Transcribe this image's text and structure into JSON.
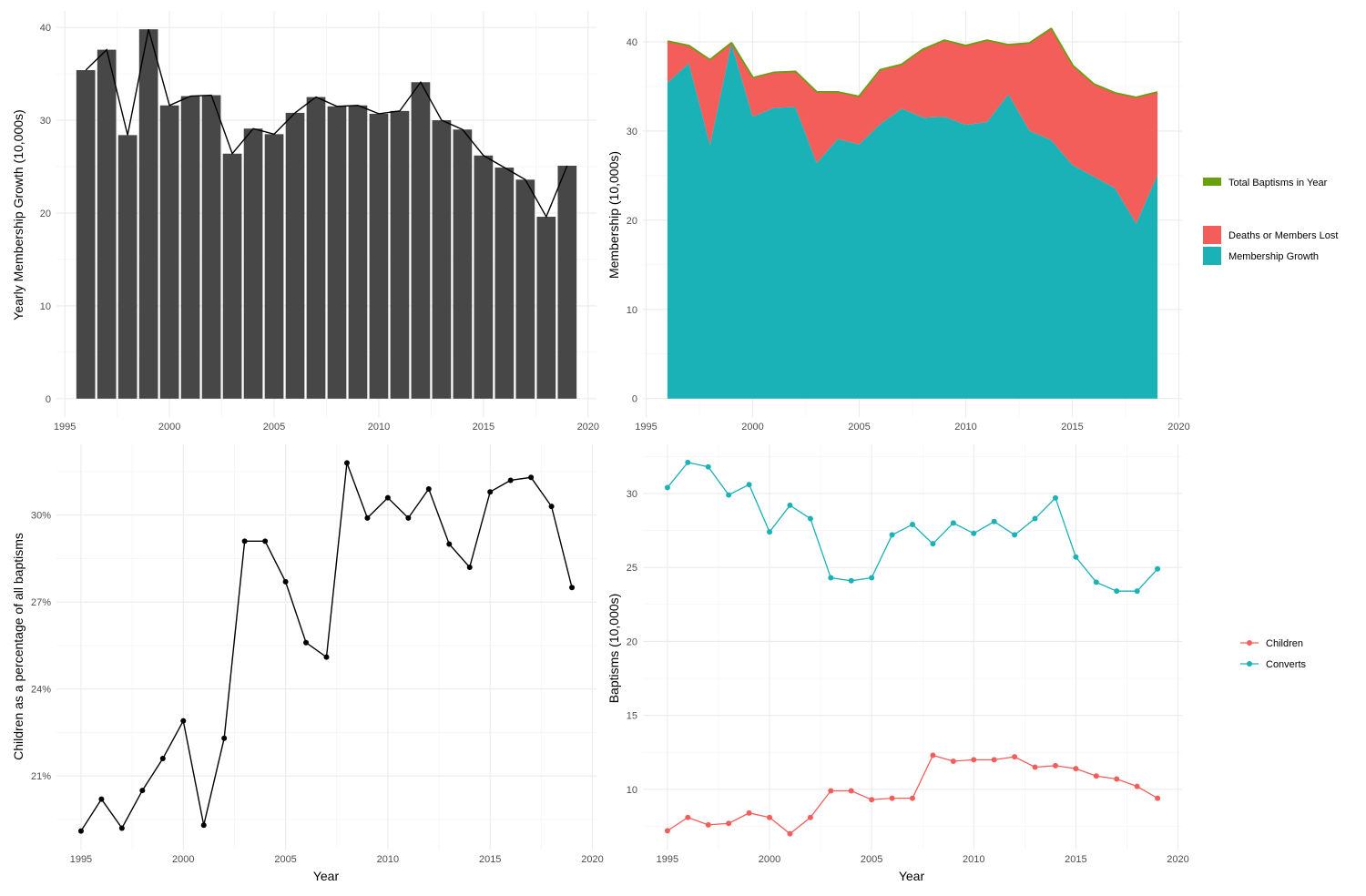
{
  "chart_data": [
    {
      "id": "yearly-growth",
      "type": "bar",
      "title": "",
      "xlabel": "",
      "ylabel": "Yearly Membership Growth (10,000s)",
      "x": [
        1996,
        1997,
        1998,
        1999,
        2000,
        2001,
        2002,
        2003,
        2004,
        2005,
        2006,
        2007,
        2008,
        2009,
        2010,
        2011,
        2012,
        2013,
        2014,
        2015,
        2016,
        2017,
        2018,
        2019
      ],
      "values": [
        35.4,
        37.6,
        28.4,
        39.8,
        31.6,
        32.6,
        32.7,
        26.4,
        29.1,
        28.5,
        30.8,
        32.5,
        31.5,
        31.6,
        30.7,
        31.0,
        34.1,
        30.0,
        29.0,
        26.2,
        24.9,
        23.6,
        19.6,
        25.1
      ],
      "overlay_line": true,
      "xlim": [
        1994.6,
        2020.4
      ],
      "ylim": [
        -1.98,
        41.78
      ],
      "x_ticks": [
        1995,
        2000,
        2005,
        2010,
        2015,
        2020
      ],
      "x_tick_labels": [
        "1995",
        "2000",
        "2005",
        "2010",
        "2015",
        "2020"
      ],
      "y_ticks": [
        0,
        10,
        20,
        30,
        40
      ],
      "y_tick_labels": [
        "0",
        "10",
        "20",
        "30",
        "40"
      ],
      "colors": {
        "bar": "#474747",
        "line": "#000000"
      },
      "grid": true
    },
    {
      "id": "membership-area",
      "type": "area",
      "title": "",
      "xlabel": "",
      "ylabel": "Membership (10,000s)",
      "x": [
        1996,
        1997,
        1998,
        1999,
        2000,
        2001,
        2002,
        2003,
        2004,
        2005,
        2006,
        2007,
        2008,
        2009,
        2010,
        2011,
        2012,
        2013,
        2014,
        2015,
        2016,
        2017,
        2018,
        2019
      ],
      "series": [
        {
          "name": "Membership Growth",
          "values": [
            35.4,
            37.6,
            28.4,
            39.8,
            31.6,
            32.6,
            32.7,
            26.4,
            29.1,
            28.5,
            30.8,
            32.5,
            31.5,
            31.6,
            30.7,
            31.0,
            34.1,
            30.0,
            29.0,
            26.2,
            24.9,
            23.6,
            19.6,
            25.1
          ],
          "color": "#1AB2B6"
        },
        {
          "name": "Deaths or Members Lost",
          "values": [
            4.6,
            1.9,
            9.5,
            0.0,
            4.3,
            3.9,
            3.9,
            7.9,
            5.2,
            5.3,
            6.0,
            4.9,
            7.6,
            8.5,
            8.8,
            9.1,
            5.5,
            9.8,
            12.4,
            11.1,
            10.3,
            10.6,
            14.1,
            9.2
          ],
          "color": "#F35E5A"
        },
        {
          "name": "Total Baptisms in Year",
          "values": [
            40.0,
            39.5,
            37.9,
            39.8,
            35.9,
            36.5,
            36.6,
            34.3,
            34.3,
            33.8,
            36.8,
            37.4,
            39.1,
            40.1,
            39.5,
            40.1,
            39.6,
            39.8,
            41.4,
            37.3,
            35.2,
            34.2,
            33.7,
            34.3
          ],
          "color": "#68A10C",
          "style": "line"
        }
      ],
      "xlim": [
        1994.85,
        2020.15
      ],
      "ylim": [
        -2.07,
        43.47
      ],
      "x_ticks": [
        1995,
        2000,
        2005,
        2010,
        2015,
        2020
      ],
      "x_tick_labels": [
        "1995",
        "2000",
        "2005",
        "2010",
        "2015",
        "2020"
      ],
      "y_ticks": [
        0,
        10,
        20,
        30,
        40
      ],
      "y_tick_labels": [
        "0",
        "10",
        "20",
        "30",
        "40"
      ],
      "legend": {
        "placement": "right",
        "entries": [
          "Total Baptisms in Year",
          "Deaths or Members Lost",
          "Membership Growth"
        ]
      },
      "grid": true
    },
    {
      "id": "children-percent",
      "type": "line",
      "title": "",
      "xlabel": "Year",
      "ylabel": "Children as a percentage of all baptisms",
      "x": [
        1995,
        1996,
        1997,
        1998,
        1999,
        2000,
        2001,
        2002,
        2003,
        2004,
        2005,
        2006,
        2007,
        2008,
        2009,
        2010,
        2011,
        2012,
        2013,
        2014,
        2015,
        2016,
        2017,
        2018,
        2019
      ],
      "values": [
        19.1,
        20.2,
        19.2,
        20.5,
        21.6,
        22.9,
        19.3,
        22.3,
        29.1,
        29.1,
        27.7,
        25.6,
        25.1,
        31.8,
        29.9,
        30.6,
        29.9,
        30.9,
        29.0,
        28.2,
        30.8,
        31.2,
        31.3,
        30.3,
        27.5
      ],
      "xlim": [
        1993.8,
        2020.2
      ],
      "ylim": [
        18.46,
        32.44
      ],
      "x_ticks": [
        1995,
        2000,
        2005,
        2010,
        2015,
        2020
      ],
      "x_tick_labels": [
        "1995",
        "2000",
        "2005",
        "2010",
        "2015",
        "2020"
      ],
      "y_ticks": [
        21,
        24,
        27,
        30
      ],
      "y_tick_labels": [
        "21%",
        "24%",
        "27%",
        "30%"
      ],
      "colors": {
        "line": "#000000"
      },
      "grid": true
    },
    {
      "id": "baptisms-by-type",
      "type": "line",
      "title": "",
      "xlabel": "Year",
      "ylabel": "Baptisms (10,000s)",
      "x": [
        1995,
        1996,
        1997,
        1998,
        1999,
        2000,
        2001,
        2002,
        2003,
        2004,
        2005,
        2006,
        2007,
        2008,
        2009,
        2010,
        2011,
        2012,
        2013,
        2014,
        2015,
        2016,
        2017,
        2018,
        2019
      ],
      "series": [
        {
          "name": "Children",
          "values": [
            7.2,
            8.1,
            7.6,
            7.7,
            8.4,
            8.1,
            7.0,
            8.1,
            9.9,
            9.9,
            9.3,
            9.4,
            9.4,
            12.3,
            11.9,
            12.0,
            12.0,
            12.2,
            11.5,
            11.6,
            11.4,
            10.9,
            10.7,
            10.2,
            9.4
          ],
          "color": "#F35E5A"
        },
        {
          "name": "Converts",
          "values": [
            30.4,
            32.1,
            31.8,
            29.9,
            30.6,
            27.4,
            29.2,
            28.3,
            24.3,
            24.1,
            24.3,
            27.2,
            27.9,
            26.6,
            28.0,
            27.3,
            28.1,
            27.2,
            28.3,
            29.7,
            25.7,
            24.0,
            23.4,
            23.4,
            24.9
          ],
          "color": "#1AB2B6"
        }
      ],
      "xlim": [
        1993.8,
        2020.2
      ],
      "ylim": [
        5.93,
        33.32
      ],
      "x_ticks": [
        1995,
        2000,
        2005,
        2010,
        2015,
        2020
      ],
      "x_tick_labels": [
        "1995",
        "2000",
        "2005",
        "2010",
        "2015",
        "2020"
      ],
      "y_ticks": [
        10,
        15,
        20,
        25,
        30
      ],
      "y_tick_labels": [
        "10",
        "15",
        "20",
        "25",
        "30"
      ],
      "legend": {
        "placement": "right",
        "entries": [
          "Children",
          "Converts"
        ]
      },
      "grid": true
    }
  ]
}
